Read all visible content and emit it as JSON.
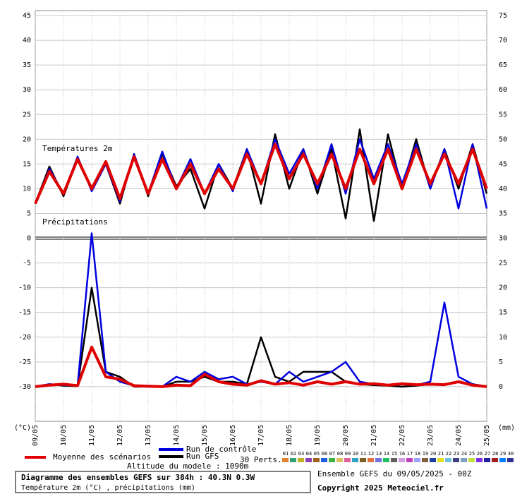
{
  "chart_data": {
    "type": "line",
    "temperature_label": "Températures 2m",
    "precipitation_label": "Précipitations",
    "y_unit": "(°C)",
    "y2_unit": "(mm)",
    "categories": [
      "09/05",
      null,
      "10/05",
      null,
      "11/05",
      null,
      "12/05",
      null,
      "13/05",
      null,
      "14/05",
      null,
      "15/05",
      null,
      "16/05",
      null,
      "17/05",
      null,
      "18/05",
      null,
      "19/05",
      null,
      "20/05",
      null,
      "21/05",
      null,
      "22/05",
      null,
      "23/05",
      null,
      "24/05",
      null,
      "25/05"
    ],
    "ylim": [
      -37,
      46
    ],
    "yticks": [
      45,
      40,
      35,
      30,
      25,
      20,
      15,
      10,
      5,
      0,
      -5,
      -10,
      -15,
      -20,
      -25,
      -30
    ],
    "y2lim": [
      -7,
      76
    ],
    "y2ticks": [
      75,
      70,
      65,
      60,
      55,
      50,
      45,
      40,
      35,
      30,
      25,
      20,
      15,
      10,
      5,
      0
    ],
    "grid": true,
    "precipitation_axis": "y2",
    "series": [
      {
        "name": "Moyenne des scénarios",
        "color": "#e00000",
        "values": [
          7,
          13.5,
          9,
          16,
          10,
          15.5,
          8,
          16.5,
          9,
          16,
          10,
          15,
          9,
          14,
          10,
          17,
          11,
          19,
          12,
          17,
          11,
          17,
          10,
          18,
          11,
          18,
          10,
          18,
          11,
          17,
          11,
          18,
          10
        ],
        "precipitation": [
          0,
          0.3,
          0.5,
          0.2,
          8,
          2,
          1.5,
          0.2,
          0.1,
          0,
          0.3,
          0.2,
          2.5,
          1,
          0.5,
          0.3,
          1.2,
          0.5,
          0.8,
          0.3,
          1,
          0.5,
          1,
          0.5,
          0.6,
          0.3,
          0.6,
          0.4,
          0.5,
          0.4,
          1,
          0.3,
          0
        ]
      },
      {
        "name": "Run de contrôle",
        "color": "#0000e0",
        "values": [
          7,
          14,
          9,
          16.5,
          9.5,
          15,
          7.5,
          17,
          9,
          17.5,
          10,
          16,
          9,
          15,
          9.5,
          18,
          11,
          20,
          13,
          18,
          10,
          19,
          9,
          20,
          12,
          19,
          11,
          19,
          10,
          18,
          6,
          19,
          6
        ],
        "precipitation": [
          0,
          0.5,
          0.3,
          0.2,
          31,
          3,
          1,
          0.2,
          0,
          0,
          2,
          1,
          3,
          1.5,
          2,
          0.5,
          1,
          0.5,
          3,
          1,
          2,
          3,
          5,
          1,
          0.5,
          0.3,
          0.5,
          0.3,
          1,
          17,
          2,
          0.5,
          0
        ]
      },
      {
        "name": "Run GFS",
        "color": "#000000",
        "values": [
          7,
          14.5,
          8.5,
          16,
          10,
          15,
          7,
          17,
          8.5,
          17,
          10.5,
          14,
          6,
          15,
          10,
          18,
          7,
          21,
          10,
          18,
          9,
          18,
          4,
          22,
          3.5,
          21,
          10,
          20,
          10,
          18,
          10,
          19,
          9
        ],
        "precipitation": [
          0,
          0.5,
          0.2,
          0.1,
          20,
          3,
          2,
          0,
          0,
          0,
          1,
          1,
          2,
          1,
          1,
          0.5,
          10,
          2,
          1,
          3,
          3,
          3,
          1,
          0.5,
          0.3,
          0.2,
          0,
          0.2,
          0.5,
          0.5,
          1,
          0.5,
          0
        ]
      }
    ],
    "perturbations": {
      "label": "30 Perts.",
      "names": [
        "01",
        "02",
        "03",
        "04",
        "05",
        "06",
        "07",
        "08",
        "09",
        "10",
        "11",
        "12",
        "13",
        "14",
        "15",
        "16",
        "17",
        "18",
        "19",
        "20",
        "21",
        "22",
        "23",
        "24",
        "25",
        "26",
        "27",
        "28",
        "29",
        "30"
      ],
      "colors": [
        "#e08030",
        "#30a070",
        "#c0b020",
        "#9040b0",
        "#a06020",
        "#2060e0",
        "#40b040",
        "#e0c060",
        "#e060a0",
        "#30a0c0",
        "#806020",
        "#e07040",
        "#7070e0",
        "#20c060",
        "#606060",
        "#d0a0e0",
        "#c040c0",
        "#a0a0ff",
        "#806040",
        "#2040a0",
        "#e0e020",
        "#70c0e0",
        "#404080",
        "#80a0c0",
        "#c0e040",
        "#8030e0",
        "#2020a0",
        "#a02020",
        "#0080ff",
        "#303090"
      ]
    },
    "altitude": "Altitude du modele : 1090m",
    "info_title": "Diagramme des ensembles GEFS sur 384h : 40.3N 0.3W",
    "info_subtitle": "Température 2m (°C) , précipitations (mm)",
    "run": "Ensemble GEFS du 09/05/2025 - 00Z",
    "copyright": "Copyright 2025 Meteociel.fr"
  }
}
